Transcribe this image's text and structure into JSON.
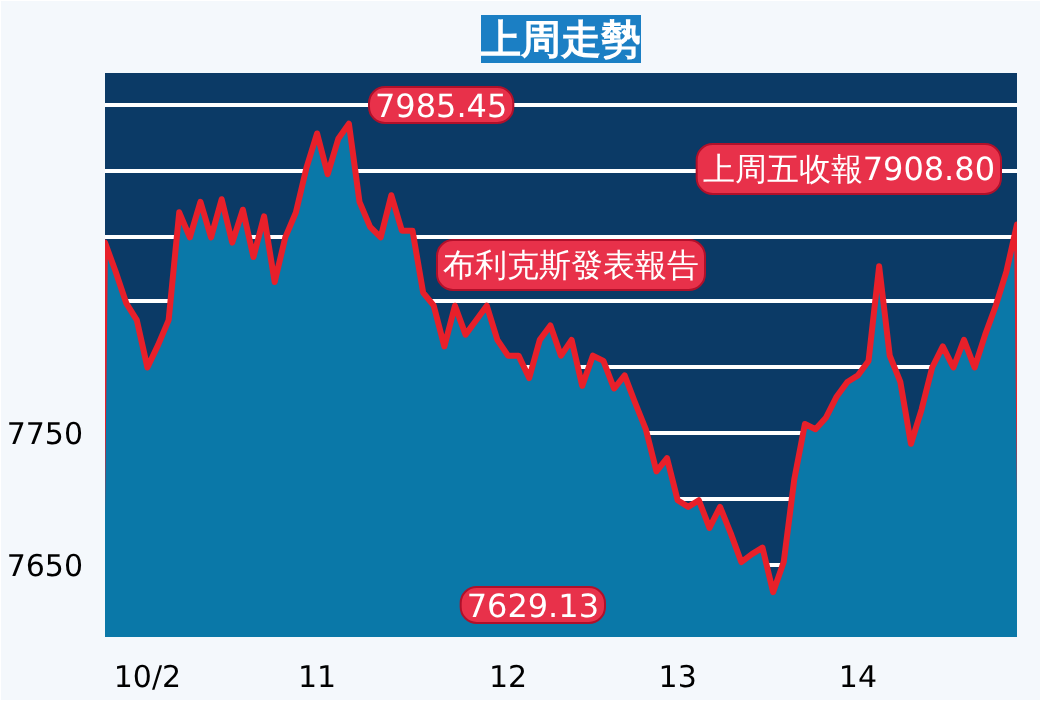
{
  "chart_data": {
    "type": "area",
    "title": "上周走勢",
    "categories": [
      null,
      null,
      null,
      null,
      "10/2",
      null,
      null,
      null,
      null,
      null,
      null,
      null,
      null,
      null,
      null,
      null,
      null,
      null,
      null,
      null,
      "11",
      null,
      null,
      null,
      null,
      null,
      null,
      null,
      null,
      null,
      null,
      null,
      null,
      null,
      null,
      null,
      null,
      null,
      "12",
      null,
      null,
      null,
      null,
      null,
      null,
      null,
      null,
      null,
      null,
      null,
      null,
      null,
      null,
      null,
      "13",
      null,
      null,
      null,
      null,
      null,
      null,
      null,
      null,
      null,
      null,
      null,
      null,
      null,
      null,
      null,
      null,
      "14",
      null,
      null,
      null,
      null,
      null,
      null,
      null,
      null,
      null,
      null,
      null,
      null,
      null,
      null,
      null
    ],
    "series": [
      {
        "color": "#e8202a",
        "values": [
          7895,
          7873,
          7849,
          7836,
          7800,
          7817,
          7836,
          7918,
          7899,
          7926,
          7899,
          7928,
          7895,
          7920,
          7884,
          7915,
          7865,
          7899,
          7918,
          7952,
          7978,
          7947,
          7974,
          7985.45,
          7926,
          7907,
          7899,
          7931,
          7904,
          7904,
          7857,
          7847,
          7816,
          7847,
          7825,
          7836,
          7847,
          7821,
          7809,
          7809,
          7792,
          7821,
          7832,
          7809,
          7821,
          7786,
          7809,
          7805,
          7784,
          7794,
          7773,
          7753,
          7721,
          7731,
          7699,
          7694,
          7699,
          7678,
          7694,
          7674,
          7652,
          7658,
          7663,
          7629.13,
          7652,
          7715,
          7757,
          7753,
          7762,
          7778,
          7789,
          7794,
          7805,
          7877,
          7809,
          7789,
          7742,
          7768,
          7800,
          7816,
          7800,
          7821,
          7800,
          7825,
          7847,
          7873,
          7908.8
        ]
      }
    ],
    "ylim": [
      7595,
      8024
    ],
    "yticks": [
      7650,
      {
        "value": 7700,
        "label": null
      },
      7750,
      {
        "value": 7800,
        "label": null
      },
      {
        "value": 7850,
        "label": null
      },
      {
        "value": 7900,
        "label": null
      },
      {
        "value": 7950,
        "label": null
      },
      {
        "value": 8000,
        "label": null
      }
    ],
    "grid": "y",
    "annotations": [
      "7985.45",
      "布利克斯發表報告",
      "上周五收報7908.80",
      "7629.13"
    ]
  }
}
